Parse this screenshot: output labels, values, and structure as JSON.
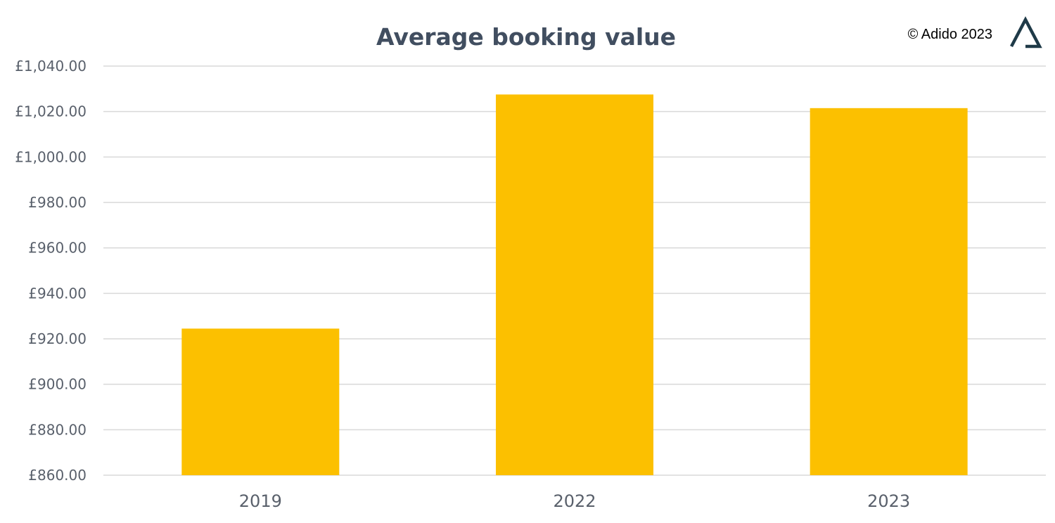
{
  "copyright": "© Adido 2023",
  "logo_icon": "adido-triangle-logo-icon",
  "chart_data": {
    "type": "bar",
    "title": "Average booking value",
    "xlabel": "",
    "ylabel": "",
    "categories": [
      "2019",
      "2022",
      "2023"
    ],
    "values": [
      924.5,
      1027.5,
      1021.5
    ],
    "ylim": [
      860,
      1040
    ],
    "ytick_step": 20,
    "ytick_labels": [
      "£860.00",
      "£880.00",
      "£900.00",
      "£920.00",
      "£940.00",
      "£960.00",
      "£980.00",
      "£1,000.00",
      "£1,020.00",
      "£1,040.00"
    ],
    "grid": true,
    "legend": "none",
    "colors": {
      "bar": "#fcc000",
      "grid": "#d9d9d9",
      "text": "#59606b",
      "title": "#414e60",
      "logo": "#1f3a48"
    }
  }
}
